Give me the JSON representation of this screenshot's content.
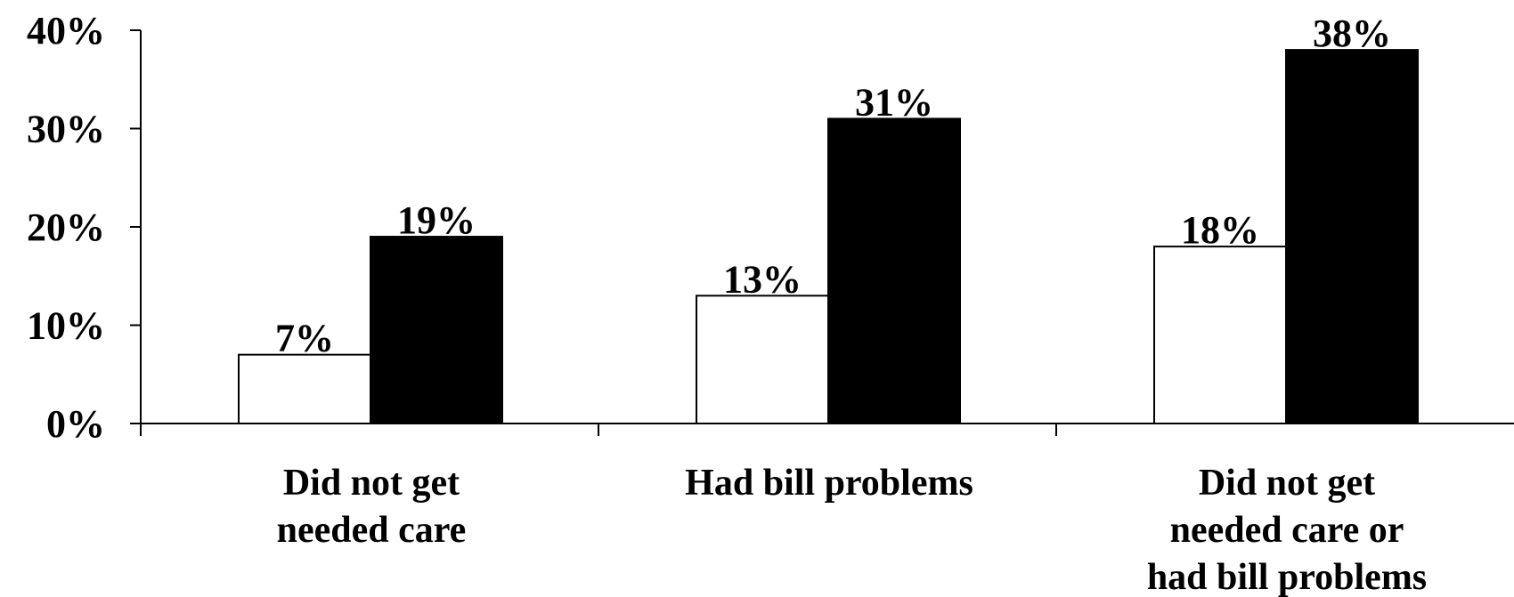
{
  "chart_data": {
    "type": "bar",
    "categories": [
      [
        "Did not get",
        "needed care"
      ],
      [
        "Had bill problems"
      ],
      [
        "Did not get",
        "needed care or",
        "had bill problems"
      ]
    ],
    "series": [
      {
        "values": [
          7,
          13,
          18
        ],
        "labels": [
          "7%",
          "13%",
          "18%"
        ],
        "color": "#ffffff"
      },
      {
        "values": [
          19,
          31,
          38
        ],
        "labels": [
          "19%",
          "31%",
          "38%"
        ],
        "color": "#000000"
      }
    ],
    "ylim": [
      0,
      40
    ],
    "yticks": [
      "0%",
      "10%",
      "20%",
      "30%",
      "40%"
    ],
    "grid": false,
    "legend": false
  }
}
